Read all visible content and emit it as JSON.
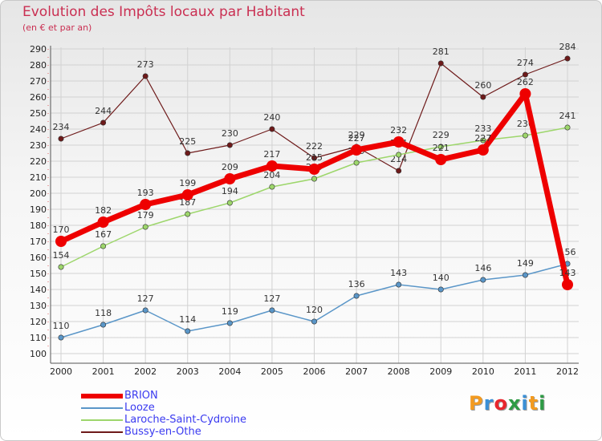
{
  "chart_data": {
    "type": "line",
    "title": "Evolution des Impôts locaux par Habitant",
    "subtitle": "(en € et par an)",
    "x": [
      "2000",
      "2001",
      "2002",
      "2003",
      "2004",
      "2005",
      "2006",
      "2007",
      "2008",
      "2009",
      "2010",
      "2011",
      "2012"
    ],
    "ylim": [
      100,
      290
    ],
    "yticks": [
      100,
      110,
      120,
      130,
      140,
      150,
      160,
      170,
      180,
      190,
      200,
      210,
      220,
      230,
      240,
      250,
      260,
      270,
      280,
      290
    ],
    "grid": true,
    "legend_position": "bottom-left",
    "series": [
      {
        "name": "Bussy-en-Othe",
        "color": "#6e1a1a",
        "values": [
          234,
          244,
          273,
          225,
          230,
          240,
          222,
          229,
          214,
          281,
          260,
          274,
          284
        ]
      },
      {
        "name": "Laroche-Saint-Cydroine",
        "color": "#9dd66b",
        "values": [
          154,
          167,
          179,
          187,
          194,
          204,
          209,
          219,
          224,
          229,
          233,
          236,
          241
        ]
      },
      {
        "name": "Looze",
        "color": "#5a96c8",
        "values": [
          110,
          118,
          127,
          114,
          119,
          127,
          120,
          136,
          143,
          140,
          146,
          149,
          156
        ]
      },
      {
        "name": "BRION",
        "color": "#ee0000",
        "values": [
          170,
          182,
          193,
          199,
          209,
          217,
          215,
          227,
          232,
          221,
          227,
          262,
          143
        ]
      }
    ]
  },
  "legend": [
    {
      "label": "BRION",
      "color": "#ee0000",
      "thickness": 6
    },
    {
      "label": "Looze",
      "color": "#5a96c8",
      "thickness": 2
    },
    {
      "label": "Laroche-Saint-Cydroine",
      "color": "#9dd66b",
      "thickness": 2
    },
    {
      "label": "Bussy-en-Othe",
      "color": "#6e1a1a",
      "thickness": 2
    }
  ],
  "logo": {
    "text": "Proxiti",
    "letters": [
      {
        "ch": "P",
        "color": "#f39a1f"
      },
      {
        "ch": "r",
        "color": "#3a8fd6"
      },
      {
        "ch": "o",
        "color": "#e8262d"
      },
      {
        "ch": "x",
        "color": "#2e9b45"
      },
      {
        "ch": "i",
        "color": "#3a8fd6"
      },
      {
        "ch": "t",
        "color": "#f39a1f"
      },
      {
        "ch": "i",
        "color": "#2e9b45"
      }
    ]
  }
}
